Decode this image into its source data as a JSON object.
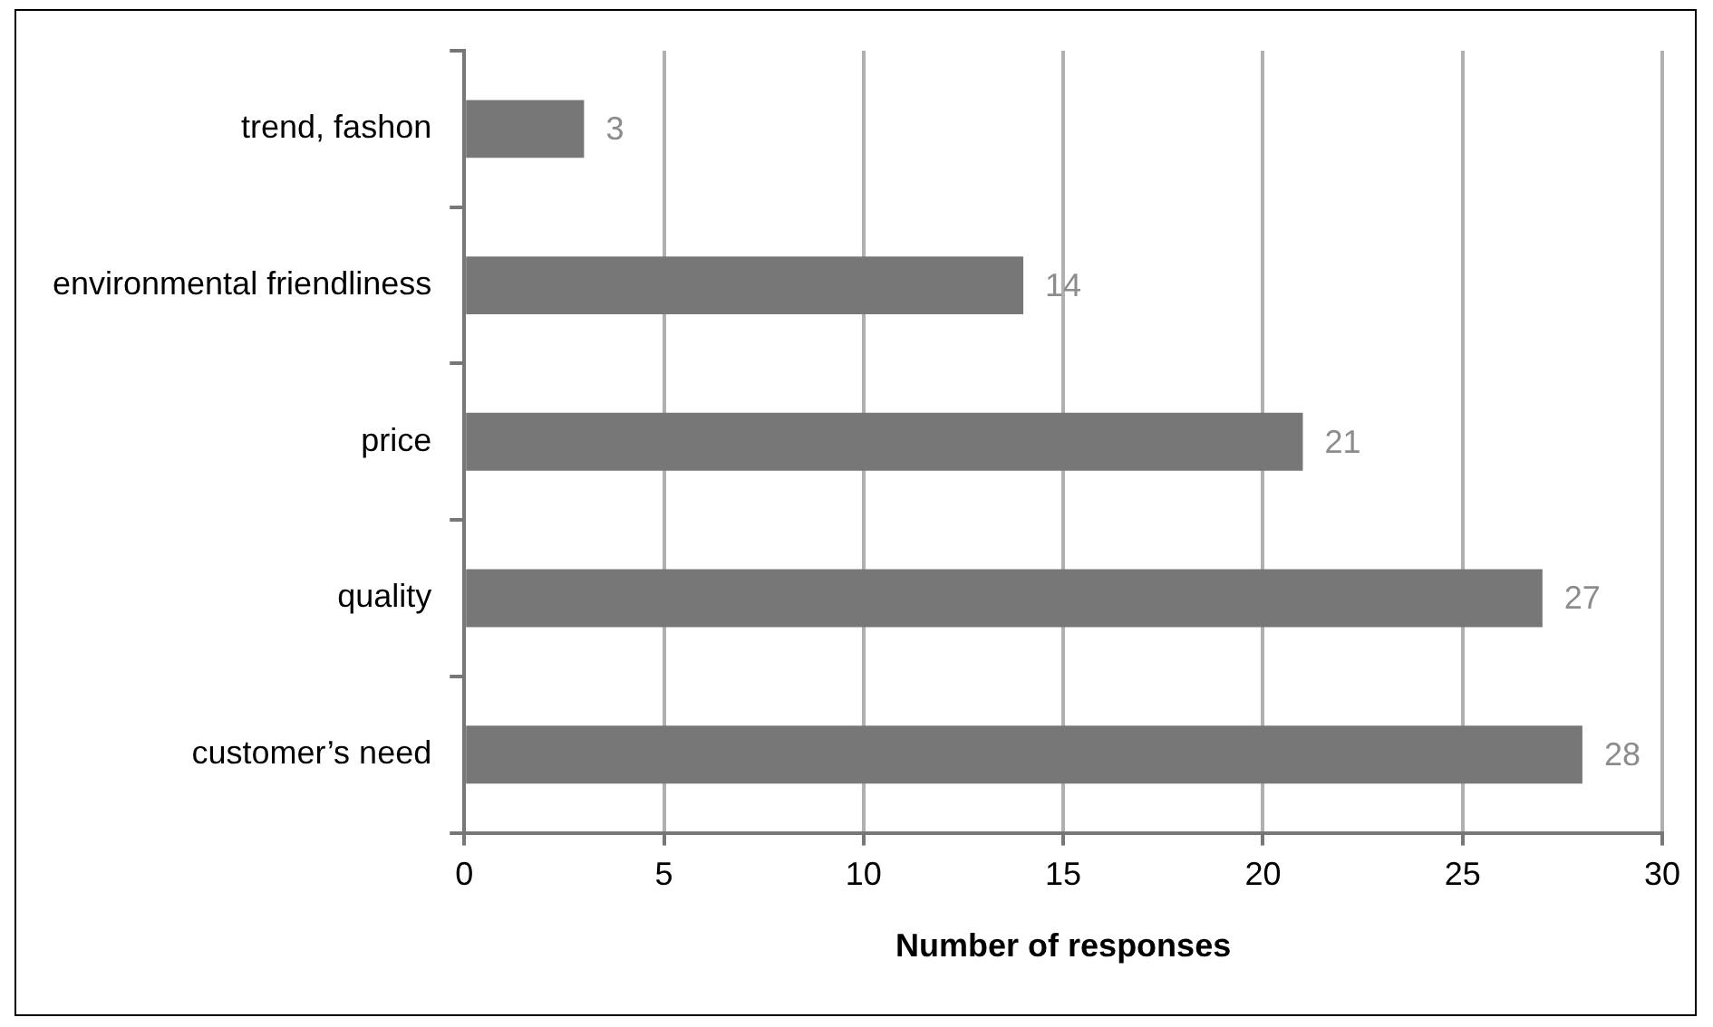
{
  "chart_data": {
    "type": "bar",
    "orientation": "horizontal",
    "categories": [
      "trend, fashon",
      "environmental friendliness",
      "price",
      "quality",
      "customer’s need"
    ],
    "values": [
      3,
      14,
      21,
      27,
      28
    ],
    "color": "#777777",
    "xlabel": "Number of responses",
    "xlim": [
      0,
      30
    ],
    "xticks": [
      0,
      5,
      10,
      15,
      20,
      25,
      30
    ],
    "grid": "x",
    "data_labels": true,
    "legend": false
  }
}
